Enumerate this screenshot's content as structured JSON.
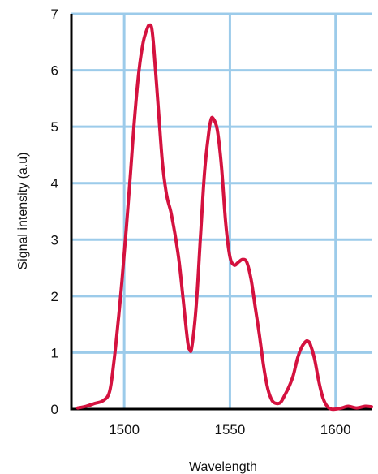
{
  "chart_data": {
    "type": "line",
    "title": "",
    "xlabel": "Wavelength",
    "ylabel": "Signal intensity (a.u)",
    "xlim": [
      1475,
      1617
    ],
    "ylim": [
      0,
      7
    ],
    "xticks": [
      1500,
      1550,
      1600
    ],
    "yticks": [
      0,
      1,
      2,
      3,
      4,
      5,
      6,
      7
    ],
    "grid": true,
    "legend": "none",
    "colors": {
      "line": "#d4123f",
      "grid": "#9ccbea",
      "axis": "#000000"
    },
    "series": [
      {
        "x": [
          1478,
          1482,
          1486,
          1490,
          1493,
          1495,
          1497,
          1499,
          1501,
          1503,
          1505,
          1507,
          1509,
          1511,
          1512,
          1513,
          1514,
          1516,
          1518,
          1520,
          1522,
          1524,
          1526,
          1528,
          1530,
          1531,
          1532,
          1534,
          1536,
          1538,
          1540,
          1541,
          1542,
          1544,
          1546,
          1548,
          1550,
          1552,
          1554,
          1556,
          1558,
          1560,
          1562,
          1564,
          1566,
          1568,
          1570,
          1572,
          1574,
          1576,
          1578,
          1580,
          1582,
          1584,
          1586,
          1587,
          1588,
          1590,
          1592,
          1594,
          1596,
          1598,
          1600,
          1603,
          1606,
          1610,
          1614,
          1617
        ],
        "y": [
          0.02,
          0.05,
          0.1,
          0.15,
          0.3,
          0.8,
          1.5,
          2.3,
          3.2,
          4.2,
          5.2,
          6.0,
          6.5,
          6.75,
          6.8,
          6.75,
          6.4,
          5.4,
          4.4,
          3.8,
          3.5,
          3.1,
          2.6,
          1.9,
          1.2,
          1.05,
          1.1,
          1.8,
          3.0,
          4.2,
          4.9,
          5.12,
          5.15,
          4.95,
          4.3,
          3.3,
          2.7,
          2.55,
          2.6,
          2.65,
          2.6,
          2.3,
          1.8,
          1.3,
          0.75,
          0.35,
          0.15,
          0.1,
          0.12,
          0.25,
          0.4,
          0.6,
          0.9,
          1.1,
          1.2,
          1.2,
          1.15,
          0.9,
          0.5,
          0.2,
          0.05,
          0.0,
          0.0,
          0.02,
          0.05,
          0.02,
          0.05,
          0.04
        ]
      }
    ]
  }
}
